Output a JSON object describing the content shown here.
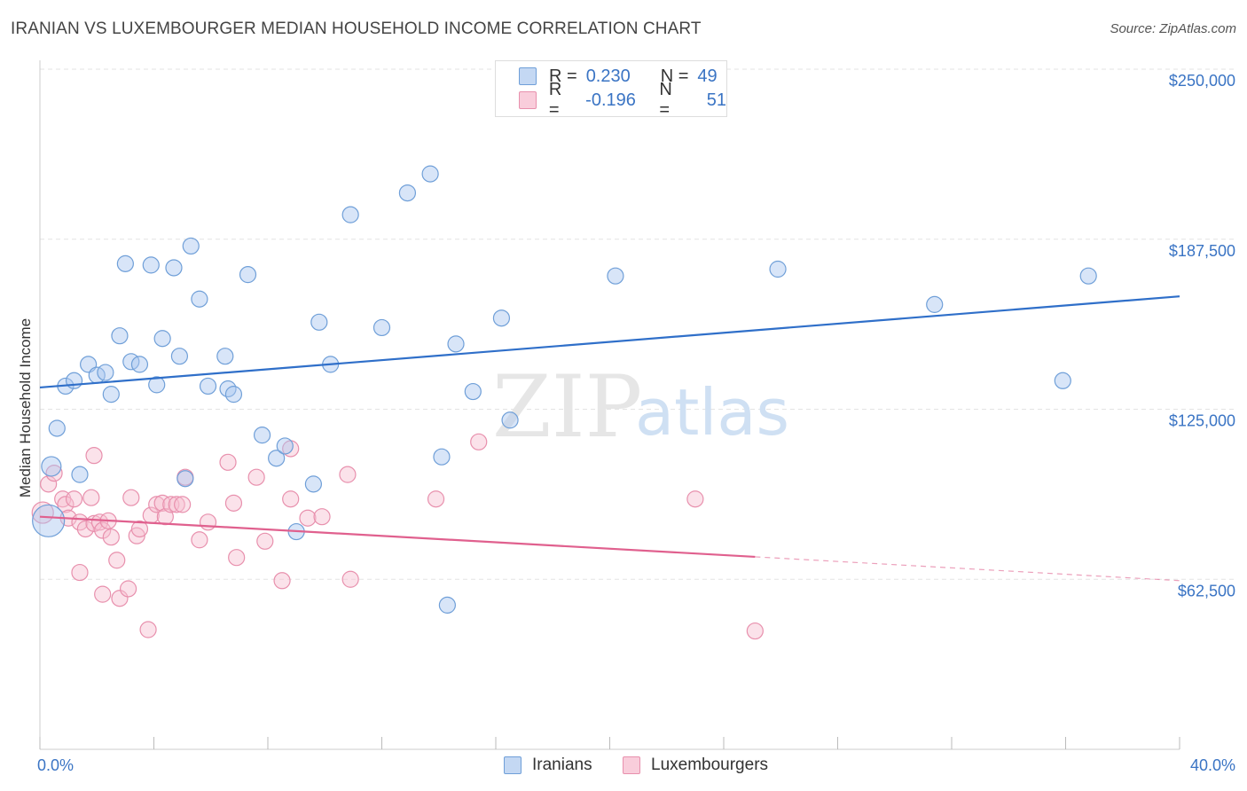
{
  "header": {
    "title": "IRANIAN VS LUXEMBOURGER MEDIAN HOUSEHOLD INCOME CORRELATION CHART",
    "source": "Source: ZipAtlas.com"
  },
  "watermark": {
    "zip": "ZIP",
    "atlas": "atlas"
  },
  "legend": {
    "rows": [
      {
        "r_label": "R =",
        "r_value": "0.230",
        "n_label": "N =",
        "n_value": "49",
        "color": "#a9c6ef"
      },
      {
        "r_label": "R =",
        "r_value": "-0.196",
        "n_label": "N =",
        "n_value": "51",
        "color": "#f4b2c6"
      }
    ]
  },
  "bottom_legend": {
    "iranians": "Iranians",
    "luxembourgers": "Luxembourgers"
  },
  "colors": {
    "iranian_fill": "#a9c6ef",
    "iranian_stroke": "#6f9fd8",
    "iranian_line": "#2f6fc9",
    "lux_fill": "#f6bfd0",
    "lux_stroke": "#e890ad",
    "lux_line": "#e0608e",
    "grid": "#e3e3e3",
    "axis_text": "#3a74c4"
  },
  "chart_data": {
    "type": "scatter",
    "title": "IRANIAN VS LUXEMBOURGER MEDIAN HOUSEHOLD INCOME CORRELATION CHART",
    "xlabel": "",
    "ylabel": "Median Household Income",
    "xlim": [
      0,
      40
    ],
    "ylim": [
      0,
      250000
    ],
    "x_tick_labels": [
      "0.0%",
      "40.0%"
    ],
    "y_ticks": [
      62500,
      125000,
      187500,
      250000
    ],
    "y_tick_labels": [
      "$62,500",
      "$125,000",
      "$187,500",
      "$250,000"
    ],
    "series": [
      {
        "name": "Iranians",
        "r": 0.23,
        "n": 49,
        "trend": {
          "x": [
            0,
            40
          ],
          "y": [
            133000,
            166500
          ],
          "solid_until": 40
        },
        "points": [
          {
            "x": 0.3,
            "y": 84000,
            "s": 18
          },
          {
            "x": 0.4,
            "y": 104000,
            "s": 11
          },
          {
            "x": 0.6,
            "y": 118000
          },
          {
            "x": 0.9,
            "y": 133500
          },
          {
            "x": 1.2,
            "y": 135500
          },
          {
            "x": 1.4,
            "y": 101000
          },
          {
            "x": 1.7,
            "y": 141500
          },
          {
            "x": 2.0,
            "y": 137500
          },
          {
            "x": 2.3,
            "y": 138500
          },
          {
            "x": 2.5,
            "y": 130500
          },
          {
            "x": 2.8,
            "y": 152000
          },
          {
            "x": 3.0,
            "y": 178500
          },
          {
            "x": 3.2,
            "y": 142500
          },
          {
            "x": 3.5,
            "y": 141500
          },
          {
            "x": 3.9,
            "y": 178000
          },
          {
            "x": 4.1,
            "y": 134000
          },
          {
            "x": 4.3,
            "y": 151000
          },
          {
            "x": 4.7,
            "y": 177000
          },
          {
            "x": 4.9,
            "y": 144500
          },
          {
            "x": 5.1,
            "y": 99500
          },
          {
            "x": 5.3,
            "y": 185000
          },
          {
            "x": 5.6,
            "y": 165500
          },
          {
            "x": 5.9,
            "y": 133500
          },
          {
            "x": 6.5,
            "y": 144500
          },
          {
            "x": 6.6,
            "y": 132500
          },
          {
            "x": 6.8,
            "y": 130500
          },
          {
            "x": 7.3,
            "y": 174500
          },
          {
            "x": 7.8,
            "y": 115500
          },
          {
            "x": 8.3,
            "y": 107000
          },
          {
            "x": 8.6,
            "y": 111500
          },
          {
            "x": 9.0,
            "y": 80000
          },
          {
            "x": 9.6,
            "y": 97500
          },
          {
            "x": 9.8,
            "y": 157000
          },
          {
            "x": 10.2,
            "y": 141500
          },
          {
            "x": 10.9,
            "y": 196500
          },
          {
            "x": 12.0,
            "y": 155000
          },
          {
            "x": 12.9,
            "y": 204500
          },
          {
            "x": 13.7,
            "y": 211500
          },
          {
            "x": 14.1,
            "y": 107500
          },
          {
            "x": 14.3,
            "y": 53000
          },
          {
            "x": 14.6,
            "y": 149000
          },
          {
            "x": 15.2,
            "y": 131500
          },
          {
            "x": 16.2,
            "y": 158500
          },
          {
            "x": 16.5,
            "y": 121000
          },
          {
            "x": 20.2,
            "y": 174000
          },
          {
            "x": 25.9,
            "y": 176500
          },
          {
            "x": 31.4,
            "y": 163500
          },
          {
            "x": 35.9,
            "y": 135500
          },
          {
            "x": 36.8,
            "y": 174000
          }
        ]
      },
      {
        "name": "Luxembourgers",
        "r": -0.196,
        "n": 51,
        "trend": {
          "x": [
            0,
            40
          ],
          "y": [
            85500,
            62000
          ],
          "solid_until": 25.1
        },
        "points": [
          {
            "x": 0.1,
            "y": 87000,
            "s": 12
          },
          {
            "x": 0.3,
            "y": 97500
          },
          {
            "x": 0.5,
            "y": 101500
          },
          {
            "x": 0.8,
            "y": 92000
          },
          {
            "x": 0.9,
            "y": 90000
          },
          {
            "x": 1.0,
            "y": 85000
          },
          {
            "x": 1.2,
            "y": 92000
          },
          {
            "x": 1.4,
            "y": 83500
          },
          {
            "x": 1.4,
            "y": 65000
          },
          {
            "x": 1.6,
            "y": 81000
          },
          {
            "x": 1.8,
            "y": 92500
          },
          {
            "x": 1.9,
            "y": 83000
          },
          {
            "x": 1.9,
            "y": 108000
          },
          {
            "x": 2.1,
            "y": 83500
          },
          {
            "x": 2.2,
            "y": 80500
          },
          {
            "x": 2.2,
            "y": 57000
          },
          {
            "x": 2.4,
            "y": 84000
          },
          {
            "x": 2.5,
            "y": 78000
          },
          {
            "x": 2.7,
            "y": 69500
          },
          {
            "x": 2.8,
            "y": 55500
          },
          {
            "x": 3.1,
            "y": 59000
          },
          {
            "x": 3.2,
            "y": 92500
          },
          {
            "x": 3.4,
            "y": 78500
          },
          {
            "x": 3.5,
            "y": 81000
          },
          {
            "x": 3.8,
            "y": 44000
          },
          {
            "x": 3.9,
            "y": 86000
          },
          {
            "x": 4.1,
            "y": 90000
          },
          {
            "x": 4.3,
            "y": 90500
          },
          {
            "x": 4.4,
            "y": 85500
          },
          {
            "x": 4.6,
            "y": 90000
          },
          {
            "x": 4.8,
            "y": 90000
          },
          {
            "x": 5.0,
            "y": 90000
          },
          {
            "x": 5.1,
            "y": 100000
          },
          {
            "x": 5.6,
            "y": 77000
          },
          {
            "x": 5.9,
            "y": 83500
          },
          {
            "x": 6.6,
            "y": 105500
          },
          {
            "x": 6.8,
            "y": 90500
          },
          {
            "x": 6.9,
            "y": 70500
          },
          {
            "x": 7.6,
            "y": 100000
          },
          {
            "x": 7.9,
            "y": 76500
          },
          {
            "x": 8.5,
            "y": 62000
          },
          {
            "x": 8.8,
            "y": 92000
          },
          {
            "x": 8.8,
            "y": 110500
          },
          {
            "x": 9.4,
            "y": 85000
          },
          {
            "x": 9.9,
            "y": 85500
          },
          {
            "x": 10.8,
            "y": 101000
          },
          {
            "x": 10.9,
            "y": 62500
          },
          {
            "x": 13.9,
            "y": 92000
          },
          {
            "x": 15.4,
            "y": 113000
          },
          {
            "x": 23.0,
            "y": 92000
          },
          {
            "x": 25.1,
            "y": 43500
          }
        ]
      }
    ]
  }
}
